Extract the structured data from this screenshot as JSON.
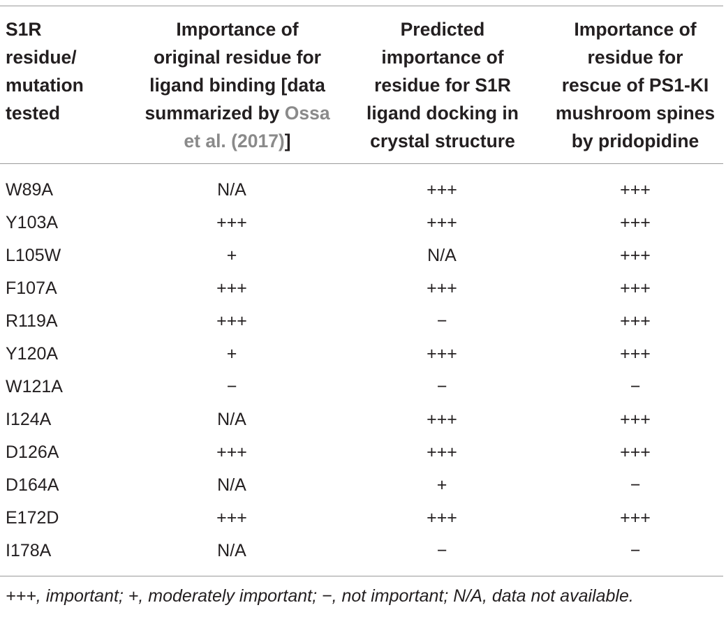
{
  "table": {
    "header": [
      {
        "lines": [
          "S1R",
          "residue/",
          "mutation",
          "tested"
        ]
      },
      {
        "lines": [
          "Importance of",
          "original residue for",
          "ligand binding [data",
          "summarized by "
        ],
        "ref_text": "Ossa",
        "ref_line2": "et al. (2017)",
        "tail": "]"
      },
      {
        "lines": [
          "Predicted",
          "importance of",
          "residue for S1R",
          "ligand docking in",
          "crystal structure"
        ]
      },
      {
        "lines": [
          "Importance of",
          "residue for",
          "rescue of PS1-KI",
          "mushroom spines",
          "by pridopidine"
        ]
      }
    ],
    "rows": [
      [
        "W89A",
        "N/A",
        "+++",
        "+++"
      ],
      [
        "Y103A",
        "+++",
        "+++",
        "+++"
      ],
      [
        "L105W",
        "+",
        "N/A",
        "+++"
      ],
      [
        "F107A",
        "+++",
        "+++",
        "+++"
      ],
      [
        "R119A",
        "+++",
        "−",
        "+++"
      ],
      [
        "Y120A",
        "+",
        "+++",
        "+++"
      ],
      [
        "W121A",
        "−",
        "−",
        "−"
      ],
      [
        "I124A",
        "N/A",
        "+++",
        "+++"
      ],
      [
        "D126A",
        "+++",
        "+++",
        "+++"
      ],
      [
        "D164A",
        "N/A",
        "+",
        "−"
      ],
      [
        "E172D",
        "+++",
        "+++",
        "+++"
      ],
      [
        "I178A",
        "N/A",
        "−",
        "−"
      ]
    ],
    "footnote": "+++, important; +, moderately important; −, not important; N/A, data not available."
  }
}
